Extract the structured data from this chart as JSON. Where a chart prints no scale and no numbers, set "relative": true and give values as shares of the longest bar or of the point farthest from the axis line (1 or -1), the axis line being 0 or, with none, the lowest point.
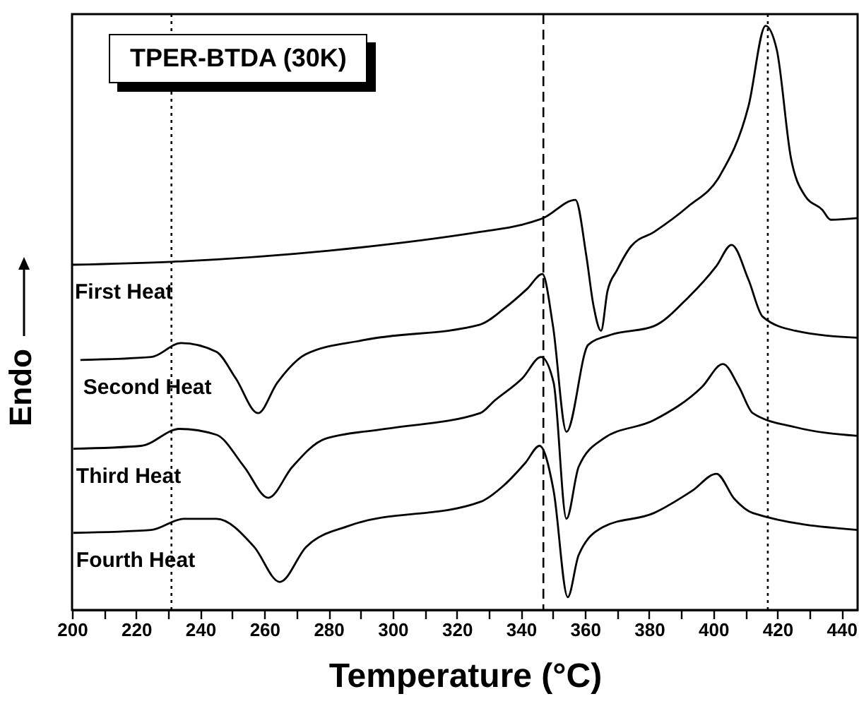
{
  "chart_data": {
    "type": "line",
    "title": "TPER-BTDA (30K)",
    "xlabel": "Temperature (°C)",
    "ylabel": "Endo",
    "relative": true,
    "xlim": [
      200,
      445
    ],
    "xticks": [
      200,
      {
        "value": 210,
        "label": null
      },
      220,
      {
        "value": 230,
        "label": null
      },
      240,
      {
        "value": 250,
        "label": null
      },
      260,
      {
        "value": 270,
        "label": null
      },
      280,
      {
        "value": 290,
        "label": null
      },
      300,
      {
        "value": 310,
        "label": null
      },
      320,
      {
        "value": 330,
        "label": null
      },
      340,
      {
        "value": 350,
        "label": null
      },
      360,
      {
        "value": 370,
        "label": null
      },
      380,
      {
        "value": 390,
        "label": null
      },
      400,
      {
        "value": 410,
        "label": null
      },
      420,
      {
        "value": 430,
        "label": null
      },
      440
    ],
    "ref_lines": [
      {
        "axis": "x",
        "value": 231,
        "line_style": "dotted"
      },
      {
        "axis": "x",
        "value": 347,
        "line_style": "dashed"
      },
      {
        "axis": "x",
        "value": 417,
        "line_style": "dotted"
      }
    ],
    "series": [
      {
        "name": "First Heat",
        "color": "#000000",
        "x": [
          200,
          231,
          280,
          327,
          340,
          347,
          357,
          360.4,
          362.6,
          365,
          367,
          370,
          374.4,
          381.5,
          392,
          402,
          411,
          416.3,
          419.8,
          424.2,
          428.6,
          434,
          436.6,
          445
        ],
        "values": [
          0.591,
          0.596,
          0.615,
          0.647,
          0.659,
          0.671,
          0.702,
          0.606,
          0.522,
          0.478,
          0.546,
          0.582,
          0.623,
          0.647,
          0.69,
          0.743,
          0.863,
          1.0,
          0.959,
          0.774,
          0.709,
          0.685,
          0.668,
          0.671
        ]
      },
      {
        "name": "Second Heat",
        "color": "#000000",
        "x": [
          202.6,
          224.7,
          234,
          245,
          251,
          258,
          264,
          273,
          291,
          327,
          335,
          342,
          346.7,
          350,
          354.2,
          361,
          368,
          381.5,
          392,
          401,
          405.7,
          411,
          415.4,
          425.5,
          445
        ],
        "values": [
          0.428,
          0.433,
          0.457,
          0.442,
          0.397,
          0.337,
          0.389,
          0.438,
          0.462,
          0.488,
          0.517,
          0.55,
          0.575,
          0.486,
          0.305,
          0.454,
          0.471,
          0.486,
          0.534,
          0.589,
          0.625,
          0.565,
          0.502,
          0.478,
          0.466
        ]
      },
      {
        "name": "Third Heat",
        "color": "#000000",
        "x": [
          200.4,
          221.6,
          233.5,
          245,
          253.7,
          261.2,
          268.7,
          278.9,
          297.8,
          327.3,
          331.7,
          340.5,
          346.3,
          350.2,
          354.2,
          358,
          365.6,
          381.5,
          396.5,
          403,
          408,
          412.3,
          425.5,
          445
        ],
        "values": [
          0.276,
          0.281,
          0.31,
          0.3,
          0.245,
          0.192,
          0.245,
          0.293,
          0.31,
          0.337,
          0.358,
          0.397,
          0.433,
          0.389,
          0.156,
          0.245,
          0.293,
          0.325,
          0.382,
          0.421,
          0.382,
          0.337,
          0.313,
          0.298
        ]
      },
      {
        "name": "Fourth Heat",
        "color": "#000000",
        "x": [
          200.4,
          224.7,
          234.8,
          245,
          256.8,
          264.8,
          273,
          286.3,
          327.3,
          334.8,
          341.4,
          345.8,
          350.2,
          354.6,
          358,
          365.6,
          381.5,
          393.4,
          401,
          406.6,
          412.3,
          445
        ],
        "values": [
          0.132,
          0.137,
          0.156,
          0.156,
          0.108,
          0.048,
          0.108,
          0.144,
          0.185,
          0.214,
          0.252,
          0.281,
          0.204,
          0.022,
          0.094,
          0.142,
          0.166,
          0.204,
          0.233,
          0.19,
          0.166,
          0.137
        ]
      }
    ]
  }
}
